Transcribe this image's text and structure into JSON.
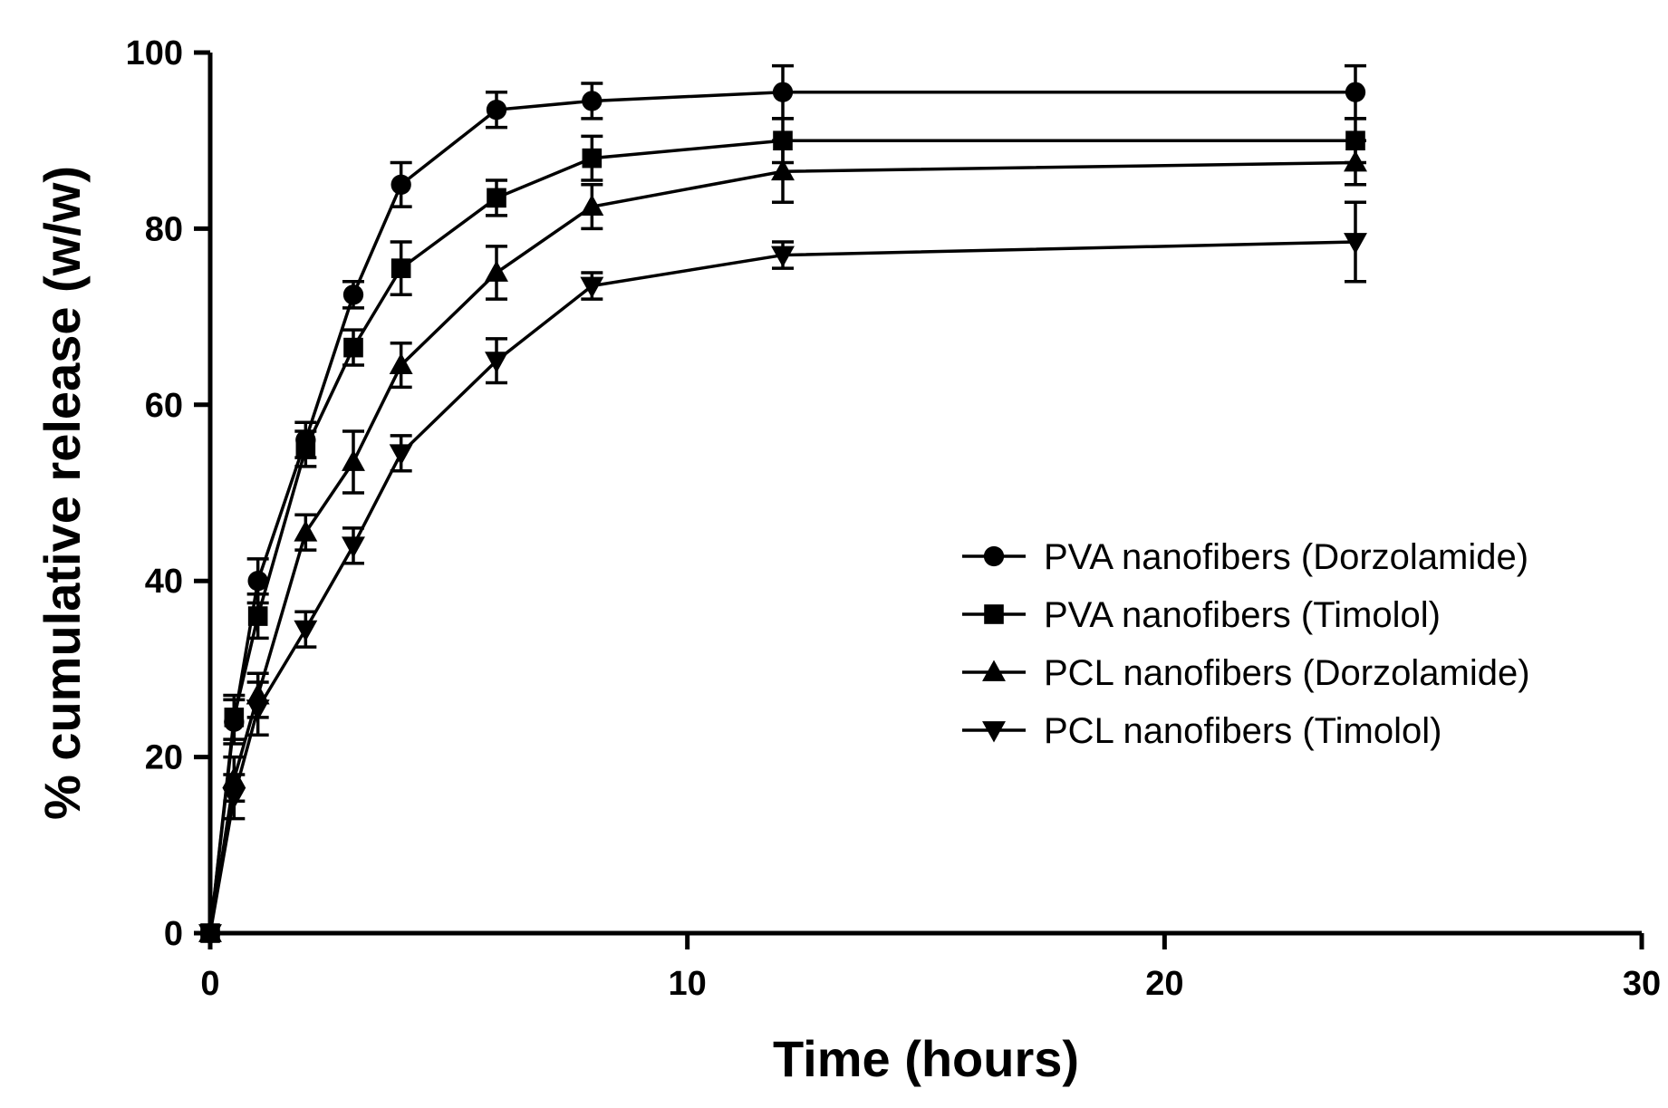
{
  "chart_data": {
    "type": "line",
    "xlabel": "Time (hours)",
    "ylabel": "% cumulative release (w/w)",
    "xlim": [
      0,
      30
    ],
    "ylim": [
      0,
      100
    ],
    "xticks": [
      0,
      10,
      20,
      30
    ],
    "yticks": [
      0,
      20,
      40,
      60,
      80,
      100
    ],
    "grid": false,
    "legend_position": "center-right",
    "series": [
      {
        "name": "PVA nanofibers (Dorzolamide)",
        "marker": "circle",
        "x": [
          0,
          0.5,
          1,
          2,
          3,
          4,
          6,
          8,
          12,
          24
        ],
        "y": [
          0,
          24,
          40,
          56,
          72.5,
          85,
          93.5,
          94.5,
          95.5,
          95.5
        ],
        "err": [
          0,
          2.5,
          2.5,
          2,
          1.5,
          2.5,
          2,
          2,
          3,
          3
        ]
      },
      {
        "name": "PVA nanofibers (Timolol)",
        "marker": "square",
        "x": [
          0,
          0.5,
          1,
          2,
          3,
          4,
          6,
          8,
          12,
          24
        ],
        "y": [
          0,
          24.5,
          36,
          55,
          66.5,
          75.5,
          83.5,
          88,
          90,
          90
        ],
        "err": [
          0,
          2.5,
          2.5,
          2,
          2,
          3,
          2,
          2.5,
          2.5,
          2.5
        ]
      },
      {
        "name": "PCL nanofibers (Dorzolamide)",
        "marker": "triangle-up",
        "x": [
          0,
          0.5,
          1,
          2,
          3,
          4,
          6,
          8,
          12,
          24
        ],
        "y": [
          0,
          17.5,
          27,
          45.5,
          53.5,
          64.5,
          75,
          82.5,
          86.5,
          87.5
        ],
        "err": [
          0,
          2.5,
          2.5,
          2,
          3.5,
          2.5,
          3,
          2.5,
          3.5,
          2.5
        ]
      },
      {
        "name": "PCL nanofibers (Timolol)",
        "marker": "triangle-down",
        "x": [
          0,
          0.5,
          1,
          2,
          3,
          4,
          6,
          8,
          12,
          24
        ],
        "y": [
          0,
          15.5,
          25.5,
          34.5,
          44,
          54.5,
          65,
          73.5,
          77,
          78.5
        ],
        "err": [
          0,
          2.5,
          3,
          2,
          2,
          2,
          2.5,
          1.5,
          1.5,
          4.5
        ]
      }
    ]
  }
}
